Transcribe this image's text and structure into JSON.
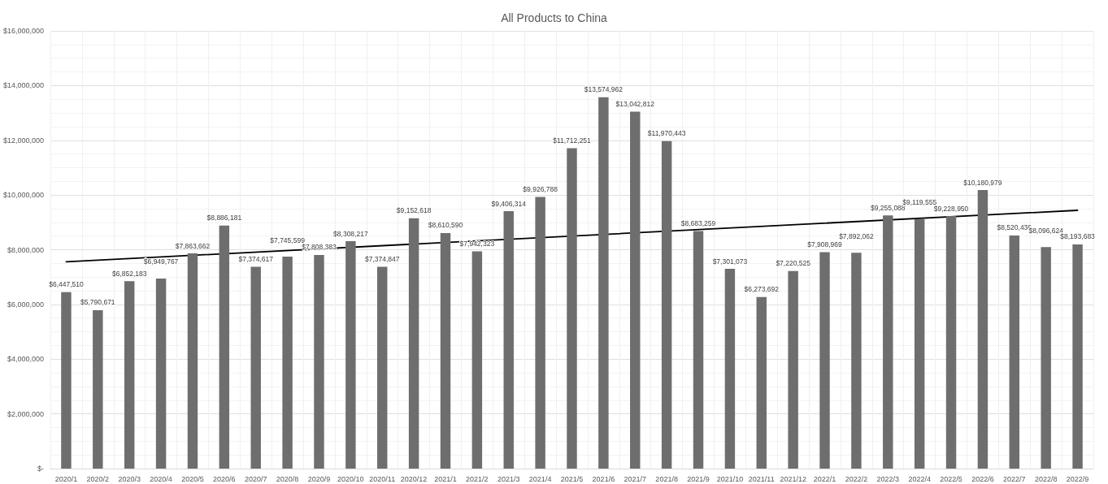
{
  "chart_data": {
    "type": "bar",
    "title": "All Products to China",
    "categories": [
      "2020/1",
      "2020/2",
      "2020/3",
      "2020/4",
      "2020/5",
      "2020/6",
      "2020/7",
      "2020/8",
      "2020/9",
      "2020/10",
      "2020/11",
      "2020/12",
      "2021/1",
      "2021/2",
      "2021/3",
      "2021/4",
      "2021/5",
      "2021/6",
      "2021/7",
      "2021/8",
      "2021/9",
      "2021/10",
      "2021/11",
      "2021/12",
      "2022/1",
      "2022/2",
      "2022/3",
      "2022/4",
      "2022/5",
      "2022/6",
      "2022/7",
      "2022/8",
      "2022/9"
    ],
    "series": [
      {
        "color": "#6e6e6e",
        "values": [
          6447510,
          5790671,
          6852183,
          6949767,
          7863662,
          8886181,
          7374617,
          7745599,
          7808383,
          8308217,
          7374847,
          9152618,
          8610590,
          7942323,
          9406314,
          9926788,
          11712251,
          13574962,
          13042812,
          11970443,
          8683259,
          7301073,
          6273692,
          7220525,
          7908969,
          7892062,
          9255088,
          9119555,
          9228950,
          10180979,
          8520436,
          8096624,
          8193683
        ],
        "value_labels": [
          "$6,447,510",
          "$5,790,671",
          "$6,852,183",
          "$6,949,767",
          "$7,863,662",
          "$8,886,181",
          "$7,374,617",
          "$7,745,599",
          "$7,808,383",
          "$8,308,217",
          "$7,374,847",
          "$9,152,618",
          "$8,610,590",
          "$7,942,323",
          "$9,406,314",
          "$9,926,788",
          "$11,712,251",
          "$13,574,962",
          "$13,042,812",
          "$11,970,443",
          "$8,683,259",
          "$7,301,073",
          "$6,273,692",
          "$7,220,525",
          "$7,908,969",
          "$7,892,062",
          "$9,255,088",
          "$9,119,555",
          "$9,228,950",
          "$10,180,979",
          "$8,520,436",
          "$8,096,624",
          "$8,193,683"
        ]
      },
      {
        "type": "line",
        "color": "#000000",
        "x": [
          "2020/1",
          "2022/9"
        ],
        "values": [
          7560000,
          9440000
        ]
      }
    ],
    "ylim": [
      0,
      16000000
    ],
    "yticks": [
      {
        "value": 0,
        "label": "$-"
      },
      {
        "value": 2000000,
        "label": "$2,000,000"
      },
      {
        "value": 4000000,
        "label": "$4,000,000"
      },
      {
        "value": 6000000,
        "label": "$6,000,000"
      },
      {
        "value": 8000000,
        "label": "$8,000,000"
      },
      {
        "value": 10000000,
        "label": "$10,000,000"
      },
      {
        "value": 12000000,
        "label": "$12,000,000"
      },
      {
        "value": 14000000,
        "label": "$14,000,000"
      },
      {
        "value": 16000000,
        "label": "$16,000,000"
      }
    ],
    "grid": true,
    "marker": "none",
    "line_style": "solid"
  }
}
